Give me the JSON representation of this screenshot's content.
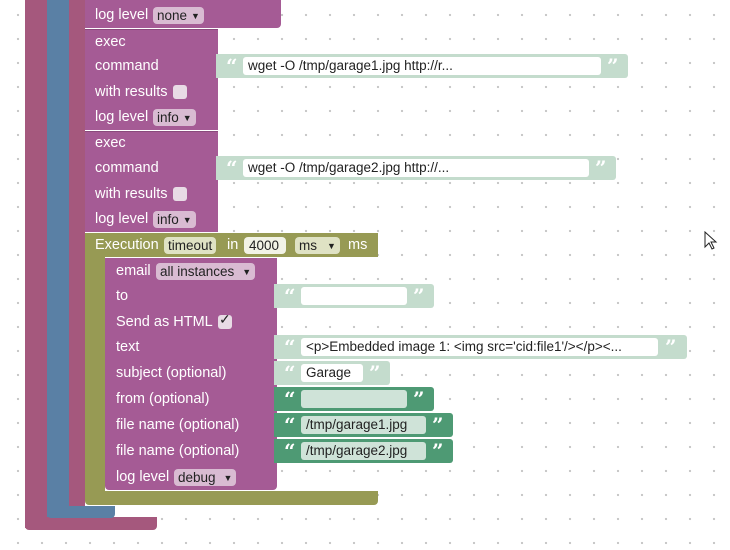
{
  "block_exec1": {
    "title": "exec",
    "command_label": "command",
    "command_value": "wget -O /tmp/garage1.jpg http://r...",
    "results_label": "with results",
    "loglevel_label": "log level",
    "loglevel_value": "info"
  },
  "top_loglevel": {
    "label": "log level",
    "value": "none"
  },
  "block_exec2": {
    "title": "exec",
    "command_label": "command",
    "command_value": "wget -O /tmp/garage2.jpg http://...",
    "results_label": "with results",
    "loglevel_label": "log level",
    "loglevel_value": "info"
  },
  "execution": {
    "label": "Execution",
    "mode": "timeout",
    "in_label": "in",
    "duration": "4000",
    "unit": "ms",
    "unit_label": "ms"
  },
  "email": {
    "label": "email",
    "target": "all instances",
    "to_label": "to",
    "html_label": "Send as HTML",
    "text_label": "text",
    "text_value": "<p>Embedded image 1: <img src='cid:file1'/></p><...",
    "subject_label": "subject (optional)",
    "subject_value": "Garage",
    "from_label": "from (optional)",
    "file1_label": "file name (optional)",
    "file1_value": "/tmp/garage1.jpg",
    "file2_label": "file name (optional)",
    "file2_value": "/tmp/garage2.jpg",
    "loglevel_label": "log level",
    "loglevel_value": "debug"
  },
  "colors": {
    "exec_block": "#a55b95",
    "exec_border": "#8a4a7c",
    "execution_block": "#979a54",
    "outer_blue": "#5a80a5",
    "outer_magenta": "#a5587d",
    "string_light": "#c4dccd",
    "string_dark": "#4e9a74"
  }
}
